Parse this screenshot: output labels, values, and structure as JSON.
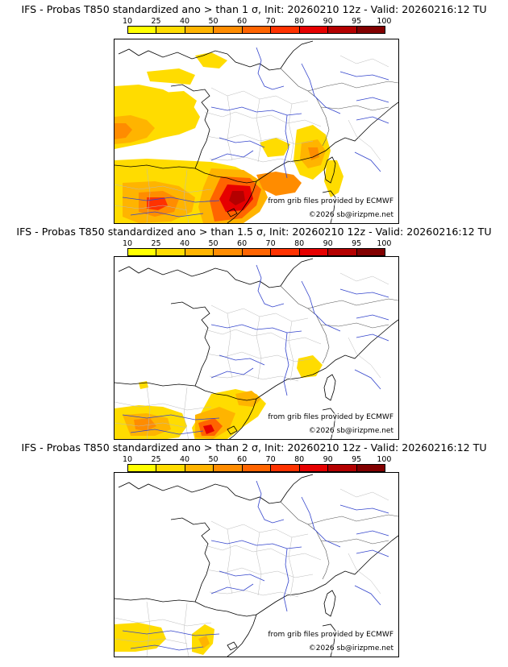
{
  "colorbar": {
    "labels": [
      "10",
      "25",
      "40",
      "50",
      "60",
      "70",
      "80",
      "90",
      "95",
      "100"
    ],
    "colors": [
      "#ffff00",
      "#ffdc00",
      "#ffb400",
      "#ff8c00",
      "#ff6400",
      "#ff3200",
      "#e60000",
      "#b40000",
      "#820000"
    ]
  },
  "credits": {
    "source": "from grib files provided by ECMWF",
    "copyright": "©2026 sb@irizpme.net"
  },
  "panels": [
    {
      "title": "IFS - Probas T850  standardized ano > than 1 σ, Init: 20260210 12z - Valid: 20260216:12 TU"
    },
    {
      "title": "IFS - Probas T850  standardized ano > than 1.5 σ, Init: 20260210 12z - Valid: 20260216:12 TU"
    },
    {
      "title": "IFS - Probas T850  standardized ano > than 2 σ, Init: 20260210 12z - Valid: 20260216:12 TU"
    }
  ]
}
